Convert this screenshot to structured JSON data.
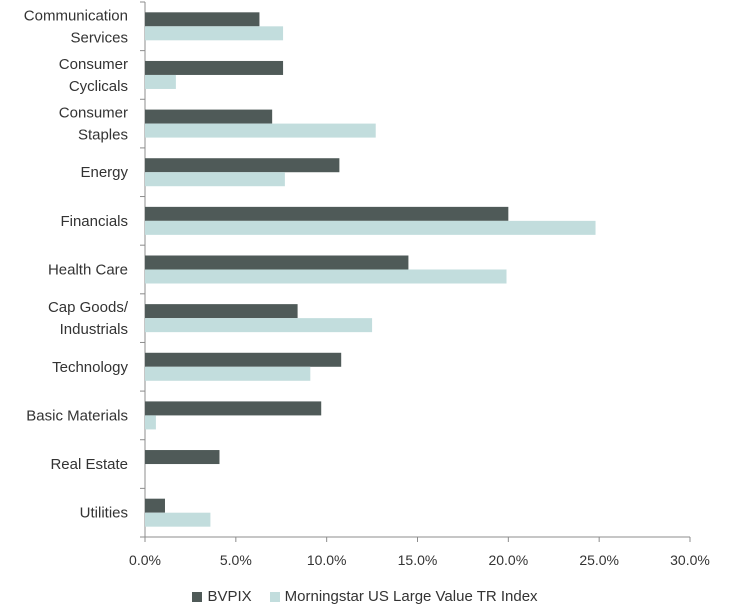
{
  "chart_data": {
    "type": "bar",
    "orientation": "horizontal",
    "categories": [
      [
        "Communication",
        "Services"
      ],
      [
        "Consumer",
        "Cyclicals"
      ],
      [
        "Consumer",
        "Staples"
      ],
      [
        "Energy"
      ],
      [
        "Financials"
      ],
      [
        "Health Care"
      ],
      [
        "Cap Goods/",
        "Industrials"
      ],
      [
        "Technology"
      ],
      [
        "Basic Materials"
      ],
      [
        "Real Estate"
      ],
      [
        "Utilities"
      ]
    ],
    "series": [
      {
        "name": "BVPIX",
        "color": "#4f5a58",
        "values": [
          6.3,
          7.6,
          7.0,
          10.7,
          20.0,
          14.5,
          8.4,
          10.8,
          9.7,
          4.1,
          1.1
        ]
      },
      {
        "name": "Morningstar US Large Value TR Index",
        "color": "#c2dddd",
        "values": [
          7.6,
          1.7,
          12.7,
          7.7,
          24.8,
          19.9,
          12.5,
          9.1,
          0.6,
          0.0,
          3.6
        ]
      }
    ],
    "xlim": [
      0,
      30
    ],
    "xticks": [
      "0.0%",
      "5.0%",
      "10.0%",
      "15.0%",
      "20.0%",
      "25.0%",
      "30.0%"
    ],
    "xlabel": "",
    "ylabel": "",
    "title": "",
    "grid": false,
    "legend_position": "bottom"
  }
}
